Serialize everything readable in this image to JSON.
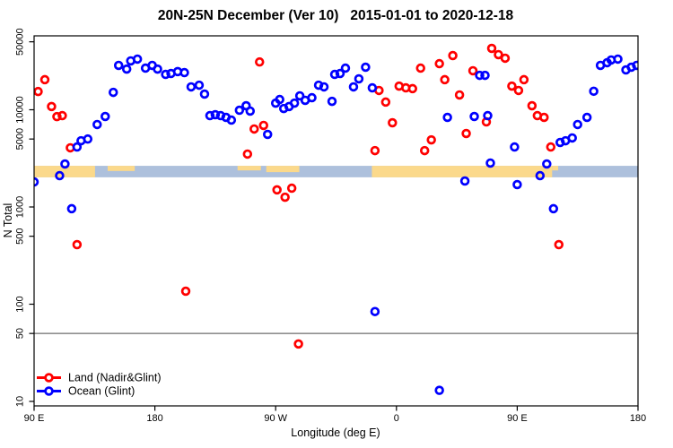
{
  "chart_data": {
    "type": "scatter",
    "title": "20N-25N December (Ver 10)   2015-01-01 to 2020-12-18",
    "xlabel": "Longitude (deg E)",
    "ylabel": "N Total",
    "x_axis": {
      "unit": "degrees of longitude, wrapped eastward starting at 90E",
      "range_deg": [
        0,
        450
      ],
      "ticks": [
        {
          "deg": 0,
          "label": "90 E"
        },
        {
          "deg": 90,
          "label": "180"
        },
        {
          "deg": 180,
          "label": "90 W"
        },
        {
          "deg": 270,
          "label": "0"
        },
        {
          "deg": 360,
          "label": "90 E"
        },
        {
          "deg": 450,
          "label": "180"
        }
      ]
    },
    "y_axis": {
      "scale": "log10",
      "range": [
        9,
        57500
      ],
      "ticks": [
        10,
        50,
        100,
        500,
        1000,
        5000,
        10000,
        50000
      ]
    },
    "grid": false,
    "legend_position": "bottom-left",
    "reference_line": {
      "n_value": 50,
      "color": "#8F8F8F"
    },
    "map_strip": {
      "description": "20N-25N latitude world-map band: land and ocean",
      "band_n_range": [
        2020,
        2650
      ],
      "ocean_color": "#ADC0DC",
      "land_color": "#FBD98B",
      "land_segments": [
        {
          "from": 0,
          "to": 45.4,
          "cov": 1
        },
        {
          "from": 54.8,
          "to": 75,
          "cov": 0.45
        },
        {
          "from": 151.6,
          "to": 169,
          "cov": 0.4
        },
        {
          "from": 173,
          "to": 197.6,
          "cov": 0.55
        },
        {
          "from": 251.7,
          "to": 386,
          "cov": 1
        },
        {
          "from": 386,
          "to": 390.5,
          "cov": 0.4
        }
      ]
    },
    "series": [
      {
        "name": "Land (Nadir&Glint)",
        "color": "#FF0000",
        "points": [
          [
            8,
            20400
          ],
          [
            3,
            15400
          ],
          [
            13,
            10800
          ],
          [
            17,
            8500
          ],
          [
            21,
            8700
          ],
          [
            27,
            4060
          ],
          [
            32,
            410
          ],
          [
            113,
            136
          ],
          [
            168,
            31000
          ],
          [
            164,
            6340
          ],
          [
            171,
            6900
          ],
          [
            159,
            3500
          ],
          [
            181,
            1500
          ],
          [
            192,
            1560
          ],
          [
            187,
            1260
          ],
          [
            197,
            39
          ],
          [
            254,
            3800
          ],
          [
            257,
            15800
          ],
          [
            262,
            12000
          ],
          [
            267,
            7350
          ],
          [
            272,
            17500
          ],
          [
            277,
            16800
          ],
          [
            282,
            16500
          ],
          [
            288,
            26800
          ],
          [
            291,
            3800
          ],
          [
            296,
            4900
          ],
          [
            302,
            29800
          ],
          [
            306,
            20400
          ],
          [
            312,
            36100
          ],
          [
            317,
            14200
          ],
          [
            322,
            5700
          ],
          [
            327,
            25200
          ],
          [
            337,
            7500
          ],
          [
            341,
            42800
          ],
          [
            346,
            36900
          ],
          [
            351,
            33900
          ],
          [
            356,
            17500
          ],
          [
            361,
            15800
          ],
          [
            365,
            20400
          ],
          [
            371,
            11000
          ],
          [
            375,
            8700
          ],
          [
            380,
            8350
          ],
          [
            385,
            4140
          ],
          [
            391,
            410
          ]
        ]
      },
      {
        "name": "Ocean (Glint)",
        "color": "#0000FF",
        "points": [
          [
            0,
            1810
          ],
          [
            19,
            2100
          ],
          [
            23,
            2770
          ],
          [
            28,
            960
          ],
          [
            32,
            4140
          ],
          [
            35,
            4800
          ],
          [
            40,
            5000
          ],
          [
            47,
            7050
          ],
          [
            53,
            8530
          ],
          [
            59,
            15100
          ],
          [
            63,
            28600
          ],
          [
            69,
            26200
          ],
          [
            72,
            31800
          ],
          [
            77,
            33200
          ],
          [
            83,
            26800
          ],
          [
            88,
            28600
          ],
          [
            92,
            26200
          ],
          [
            98,
            23100
          ],
          [
            102,
            23600
          ],
          [
            107,
            24700
          ],
          [
            112,
            24100
          ],
          [
            117,
            17200
          ],
          [
            123,
            17900
          ],
          [
            127,
            14500
          ],
          [
            131,
            8700
          ],
          [
            135,
            8900
          ],
          [
            139,
            8700
          ],
          [
            143,
            8350
          ],
          [
            147,
            7830
          ],
          [
            153,
            9890
          ],
          [
            158,
            11000
          ],
          [
            161,
            9690
          ],
          [
            174,
            5580
          ],
          [
            180,
            11700
          ],
          [
            183,
            12750
          ],
          [
            186,
            10300
          ],
          [
            190,
            10800
          ],
          [
            194,
            11700
          ],
          [
            198,
            13900
          ],
          [
            202,
            12500
          ],
          [
            207,
            13300
          ],
          [
            212,
            17900
          ],
          [
            216,
            17200
          ],
          [
            222,
            12200
          ],
          [
            224,
            23100
          ],
          [
            228,
            23600
          ],
          [
            232,
            26800
          ],
          [
            238,
            17200
          ],
          [
            242,
            20800
          ],
          [
            247,
            27400
          ],
          [
            252,
            16800
          ],
          [
            254,
            84
          ],
          [
            302,
            13
          ],
          [
            308,
            8350
          ],
          [
            321,
            1850
          ],
          [
            328,
            8530
          ],
          [
            332,
            22600
          ],
          [
            336,
            22600
          ],
          [
            338,
            8700
          ],
          [
            340,
            2830
          ],
          [
            358,
            4140
          ],
          [
            360,
            1700
          ],
          [
            377,
            2100
          ],
          [
            382,
            2770
          ],
          [
            387,
            960
          ],
          [
            392,
            4610
          ],
          [
            396,
            4800
          ],
          [
            401,
            5130
          ],
          [
            405,
            7050
          ],
          [
            412,
            8350
          ],
          [
            417,
            15500
          ],
          [
            422,
            28600
          ],
          [
            427,
            30500
          ],
          [
            430,
            32500
          ],
          [
            435,
            33200
          ],
          [
            441,
            25700
          ],
          [
            445,
            27400
          ],
          [
            449,
            28600
          ]
        ]
      }
    ]
  }
}
